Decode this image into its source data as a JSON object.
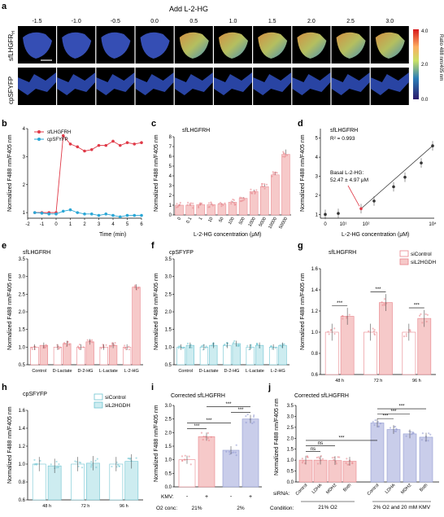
{
  "figure": {
    "panel_letters": [
      "a",
      "b",
      "c",
      "d",
      "e",
      "f",
      "g",
      "h",
      "i",
      "j"
    ],
    "panel_a": {
      "header": "Add L-2-HG",
      "times": [
        "-1.5",
        "-1.0",
        "-0.5",
        "0.0",
        "0.5",
        "1.0",
        "1.5",
        "2.0",
        "2.5",
        "3.0"
      ],
      "row_labels": [
        "sfLHGFR",
        "cpSFYFP"
      ],
      "row_label_sub": "H",
      "colorbar_ticks": [
        "4.0",
        "2.0",
        "0.0"
      ],
      "colorbar_label": "Ratio 488 nm/405 nm"
    },
    "panel_b": {
      "xlabel": "Time (min)",
      "ylabel": "Normalized F488 nm/F405 nm",
      "legend": [
        "sfLHGFRH",
        "cpSFYFP"
      ]
    },
    "panel_c": {
      "title": "sfLHGFRH",
      "xlabel": "L-2-HG concentration (μM)",
      "ylabel": "Normalized F488 nm/F405 nm"
    },
    "panel_d": {
      "title": "sfLHGFRH",
      "r2": "R² = 0.993",
      "annotation_1": "Basal L-2-HG:",
      "annotation_2": "52.47 ± 4.97 μM",
      "xlabel": "L-2-HG concentration (μM)",
      "ylabel": "Normalized F488 nm/F405 nm"
    },
    "panel_e": {
      "title": "sfLHGFRH",
      "ylabel": "Normalized F488 nm/F405 nm"
    },
    "panel_f": {
      "title": "cpSFYFP",
      "ylabel": "Normalized F488 nm/F405 nm"
    },
    "panel_g": {
      "title": "sfLHGFRH",
      "ylabel": "Normalized F488 nm/F405 nm",
      "legend": [
        "siControl",
        "siL2HGDH"
      ]
    },
    "panel_h": {
      "title": "cpSFYFP",
      "ylabel": "Normalized F488 nm/F405 nm",
      "legend": [
        "siControl",
        "siL2HGDH"
      ]
    },
    "panel_i": {
      "title": "Corrected sfLHGFRH",
      "ylabel": "Normalized F488 nm/F405 nm",
      "kmv_label": "KMV:",
      "kmv_values": [
        "-",
        "+",
        "-",
        "+"
      ],
      "o2_label": "O2 conc:",
      "o2_groups": [
        "21%",
        "2%"
      ],
      "sig": [
        "***",
        "***",
        "***",
        "***"
      ]
    },
    "panel_j": {
      "title": "Corrected sfLHGFRH",
      "ylabel": "Normalized F488 nm/F405 nm",
      "sirna_label": "siRNA:",
      "condition_label": "Condition:",
      "condition_groups": [
        "21% O2",
        "2% O2 and 20 mM KMV"
      ],
      "ns_labels": [
        "ns",
        "ns"
      ],
      "sig": [
        "***",
        "***",
        "***",
        "***"
      ]
    }
  },
  "colors": {
    "pink_bar": "#f6c9c9",
    "pink_line": "#e8838a",
    "red": "#e03a48",
    "cyan": "#2aa7d6",
    "teal_bar": "#cdecf0",
    "teal_line": "#6fc4d1",
    "lav_bar": "#c9cdea",
    "lav_line": "#8f98d0"
  },
  "chart_data": [
    {
      "panel": "b",
      "type": "line",
      "x": [
        -1.5,
        -1,
        -0.5,
        0,
        0.5,
        1,
        1.5,
        2,
        2.5,
        3,
        3.5,
        4,
        4.5,
        5,
        5.5,
        6
      ],
      "series": [
        {
          "name": "sfLHGFRH",
          "values": [
            1.0,
            1.0,
            1.0,
            1.0,
            3.75,
            3.45,
            3.35,
            3.2,
            3.25,
            3.4,
            3.4,
            3.55,
            3.4,
            3.5,
            3.45,
            3.5
          ]
        },
        {
          "name": "cpSFYFP",
          "values": [
            1.0,
            0.98,
            0.95,
            0.95,
            1.05,
            1.1,
            1.0,
            0.95,
            0.95,
            0.9,
            0.95,
            0.9,
            0.85,
            0.9,
            0.9,
            0.9
          ]
        }
      ],
      "xlim": [
        -2,
        6
      ],
      "ylim": [
        0.8,
        4
      ],
      "xticks": [
        -2,
        -1,
        0,
        1,
        2,
        3,
        4,
        5,
        6
      ],
      "yticks": [
        1,
        2,
        3,
        4
      ]
    },
    {
      "panel": "c",
      "type": "bar",
      "categories": [
        "0",
        "0.1",
        "1",
        "10",
        "50",
        "100",
        "500",
        "1000",
        "5000",
        "10000",
        "50000"
      ],
      "values": [
        1.0,
        1.0,
        1.05,
        1.05,
        1.1,
        1.3,
        1.7,
        2.4,
        2.9,
        4.1,
        6.2
      ],
      "ylim": [
        0,
        8
      ],
      "yticks": [
        0,
        1,
        2,
        3,
        4,
        5,
        6,
        7,
        8
      ]
    },
    {
      "panel": "d",
      "type": "scatter",
      "x": [
        0,
        10,
        50,
        100,
        500,
        1000,
        5000,
        10000
      ],
      "values": [
        1.0,
        1.05,
        1.3,
        1.7,
        2.45,
        2.95,
        3.7,
        4.6
      ],
      "ylim": [
        0.8,
        5.5
      ],
      "yticks": [
        1,
        2,
        3,
        4,
        5
      ],
      "xticks": [
        "0",
        "10¹",
        "10²",
        "10⁴"
      ]
    },
    {
      "panel": "e",
      "type": "bar",
      "categories": [
        "Control",
        "D-Lactate",
        "D-2-HG",
        "L-Lactate",
        "L-2-HG"
      ],
      "series": [
        {
          "values": [
            1.0,
            1.0,
            1.0,
            1.0,
            1.0
          ]
        },
        {
          "values": [
            1.05,
            1.1,
            1.15,
            1.05,
            2.7
          ]
        }
      ],
      "ylim": [
        0.5,
        3.5
      ],
      "yticks": [
        0.5,
        1.0,
        1.5,
        2.0,
        2.5,
        3.0,
        3.5
      ]
    },
    {
      "panel": "f",
      "type": "bar",
      "categories": [
        "Control",
        "D-Lactate",
        "D-2-HG",
        "L-Lactate",
        "L-2-HG"
      ],
      "series": [
        {
          "values": [
            1.0,
            1.0,
            1.05,
            1.0,
            1.0
          ]
        },
        {
          "values": [
            1.05,
            1.05,
            1.1,
            1.05,
            1.05
          ]
        }
      ],
      "ylim": [
        0.5,
        3.5
      ],
      "yticks": [
        0.5,
        1.0,
        1.5,
        2.0,
        2.5,
        3.0,
        3.5
      ]
    },
    {
      "panel": "g",
      "type": "bar",
      "categories": [
        "48 h",
        "72 h",
        "96 h"
      ],
      "series": [
        {
          "name": "siControl",
          "values": [
            1.0,
            1.0,
            1.0
          ]
        },
        {
          "name": "siL2HGDH",
          "values": [
            1.15,
            1.28,
            1.13
          ]
        }
      ],
      "ylim": [
        0.6,
        1.6
      ],
      "yticks": [
        0.6,
        0.8,
        1.0,
        1.2,
        1.4,
        1.6
      ]
    },
    {
      "panel": "h",
      "type": "bar",
      "categories": [
        "48 h",
        "72 h",
        "96 h"
      ],
      "series": [
        {
          "name": "siControl",
          "values": [
            1.0,
            1.0,
            1.0
          ]
        },
        {
          "name": "siL2HGDH",
          "values": [
            0.98,
            1.01,
            1.03
          ]
        }
      ],
      "ylim": [
        0.6,
        1.6
      ],
      "yticks": [
        0.6,
        0.8,
        1.0,
        1.2,
        1.4,
        1.6
      ]
    },
    {
      "panel": "i",
      "type": "bar",
      "values": [
        1.0,
        1.85,
        1.35,
        2.5
      ],
      "ylim": [
        0,
        3
      ],
      "yticks": [
        0,
        0.5,
        1.0,
        1.5,
        2.0,
        2.5,
        3.0
      ]
    },
    {
      "panel": "j",
      "type": "bar",
      "categories": [
        "Control",
        "LDHA",
        "MDH2",
        "Both",
        "Control",
        "LDHA",
        "MDH2",
        "Both"
      ],
      "values": [
        1.0,
        1.0,
        0.98,
        0.95,
        2.7,
        2.4,
        2.2,
        2.05
      ],
      "ylim": [
        0,
        3.5
      ],
      "yticks": [
        0,
        0.5,
        1.0,
        1.5,
        2.0,
        2.5,
        3.0,
        3.5
      ]
    }
  ]
}
